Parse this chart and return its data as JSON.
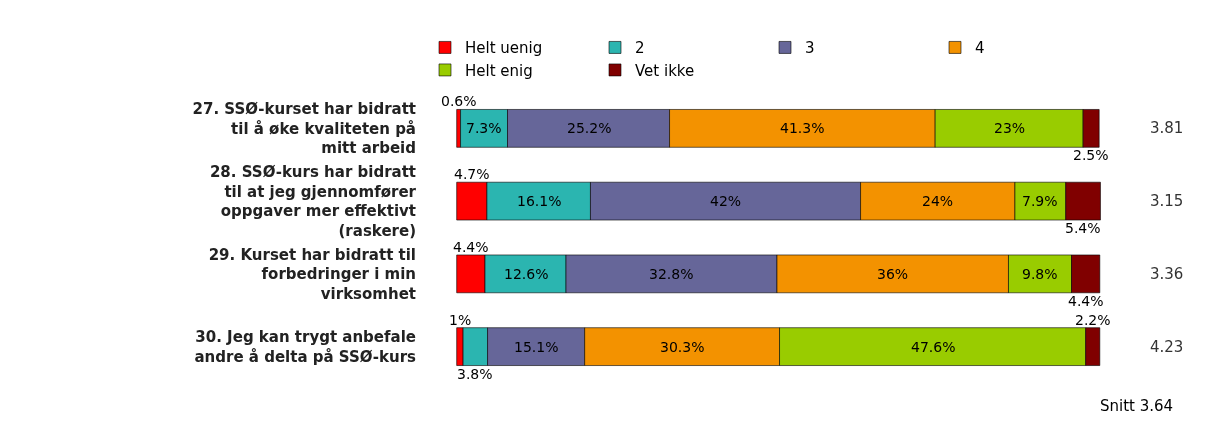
{
  "chart_data": {
    "type": "bar",
    "orientation": "horizontal",
    "stacked": true,
    "categories": [
      "27. SSØ-kurset har bidratt til å øke kvaliteten på mitt arbeid",
      "28. SSØ-kurs har bidratt til at jeg gjennomfører oppgaver mer effektivt (raskere)",
      "29. Kurset har bidratt til forbedringer i min virksomhet",
      "30. Jeg kan trygt anbefale andre å delta på SSØ-kurs"
    ],
    "series": [
      {
        "name": "Helt uenig",
        "color": "#ff0000",
        "values": [
          0.6,
          4.7,
          4.4,
          1
        ],
        "value_labels": [
          "0.6%",
          "4.7%",
          "4.4%",
          "1%"
        ]
      },
      {
        "name": "2",
        "color": "#2bb5b0",
        "values": [
          7.3,
          16.1,
          12.6,
          3.8
        ],
        "value_labels": [
          "7.3%",
          "16.1%",
          "12.6%",
          "3.8%"
        ]
      },
      {
        "name": "3",
        "color": "#666699",
        "values": [
          25.2,
          42,
          32.8,
          15.1
        ],
        "value_labels": [
          "25.2%",
          "42%",
          "32.8%",
          "15.1%"
        ]
      },
      {
        "name": "4",
        "color": "#f39200",
        "values": [
          41.3,
          24,
          36,
          30.3
        ],
        "value_labels": [
          "41.3%",
          "24%",
          "36%",
          "30.3%"
        ]
      },
      {
        "name": "Helt enig",
        "color": "#99cc00",
        "values": [
          23,
          7.9,
          9.8,
          47.6
        ],
        "value_labels": [
          "23%",
          "7.9%",
          "9.8%",
          "47.6%"
        ]
      },
      {
        "name": "Vet ikke",
        "color": "#800000",
        "values": [
          2.5,
          5.4,
          4.4,
          2.2
        ],
        "value_labels": [
          "2.5%",
          "5.4%",
          "4.4%",
          "2.2%"
        ]
      }
    ],
    "legend": "top",
    "annotations": [
      "3.81",
      "3.15",
      "3.36",
      "4.23",
      "Snitt 3.64"
    ]
  }
}
